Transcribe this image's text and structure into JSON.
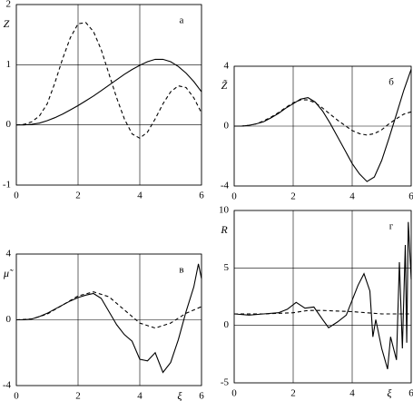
{
  "chart_data": [
    {
      "type": "line",
      "ylabel": "Z",
      "annotation": "а",
      "xlim": [
        0,
        6
      ],
      "ylim": [
        -1,
        2
      ],
      "xticks": [
        0,
        2,
        4,
        6
      ],
      "yticks": [
        -1,
        0,
        1,
        2
      ],
      "grid": true,
      "series": [
        {
          "color": "#000",
          "linestyle": "dashed",
          "x": [
            0,
            0.25,
            0.5,
            0.75,
            1,
            1.25,
            1.5,
            1.75,
            2,
            2.25,
            2.5,
            2.75,
            3,
            3.25,
            3.5,
            3.75,
            4,
            4.25,
            4.5,
            4.75,
            5,
            5.25,
            5.5,
            5.75,
            6
          ],
          "values": [
            0,
            0.01,
            0.05,
            0.15,
            0.35,
            0.7,
            1.1,
            1.45,
            1.68,
            1.7,
            1.55,
            1.25,
            0.85,
            0.45,
            0.1,
            -0.15,
            -0.22,
            -0.12,
            0.1,
            0.35,
            0.55,
            0.65,
            0.62,
            0.45,
            0.2
          ]
        },
        {
          "color": "#000",
          "linestyle": "solid",
          "x": [
            0,
            0.25,
            0.5,
            0.75,
            1,
            1.25,
            1.5,
            1.75,
            2,
            2.25,
            2.5,
            2.75,
            3,
            3.25,
            3.5,
            3.75,
            4,
            4.25,
            4.5,
            4.75,
            5,
            5.25,
            5.5,
            5.75,
            6
          ],
          "values": [
            0,
            0,
            0.01,
            0.03,
            0.07,
            0.12,
            0.18,
            0.25,
            0.32,
            0.4,
            0.48,
            0.57,
            0.66,
            0.75,
            0.84,
            0.92,
            0.99,
            1.05,
            1.09,
            1.09,
            1.05,
            0.97,
            0.86,
            0.72,
            0.55
          ]
        }
      ]
    },
    {
      "type": "line",
      "ylabel": "Z̃",
      "annotation": "б",
      "xlim": [
        0,
        6
      ],
      "ylim": [
        -4,
        4
      ],
      "xticks": [
        0,
        2,
        4,
        6
      ],
      "yticks": [
        -4,
        0,
        4
      ],
      "grid": true,
      "series": [
        {
          "color": "#000",
          "linestyle": "dashed",
          "x": [
            0,
            0.25,
            0.5,
            0.75,
            1,
            1.25,
            1.5,
            1.75,
            2,
            2.25,
            2.5,
            2.75,
            3,
            3.25,
            3.5,
            3.75,
            4,
            4.25,
            4.5,
            4.75,
            5,
            5.25,
            5.5,
            5.75,
            6
          ],
          "values": [
            0,
            0,
            0.05,
            0.15,
            0.35,
            0.6,
            0.9,
            1.25,
            1.55,
            1.75,
            1.75,
            1.55,
            1.2,
            0.8,
            0.4,
            0.05,
            -0.3,
            -0.5,
            -0.6,
            -0.5,
            -0.25,
            0.15,
            0.5,
            0.8,
            0.95
          ]
        },
        {
          "color": "#000",
          "linestyle": "solid",
          "x": [
            0,
            0.25,
            0.5,
            0.75,
            1,
            1.25,
            1.5,
            1.75,
            2,
            2.25,
            2.5,
            2.75,
            3,
            3.25,
            3.5,
            3.75,
            4,
            4.25,
            4.5,
            4.75,
            5,
            5.25,
            5.5,
            5.75,
            6
          ],
          "values": [
            0,
            0,
            0.05,
            0.15,
            0.3,
            0.55,
            0.85,
            1.2,
            1.5,
            1.8,
            1.9,
            1.6,
            1.0,
            0.2,
            -0.7,
            -1.6,
            -2.5,
            -3.2,
            -3.7,
            -3.4,
            -2.3,
            -0.8,
            0.8,
            2.4,
            3.8
          ]
        }
      ]
    },
    {
      "type": "line",
      "ylabel": "μ̃",
      "annotation": "в",
      "xlabel": "ξ",
      "xlim": [
        0,
        6
      ],
      "ylim": [
        -4,
        4
      ],
      "xticks": [
        0,
        2,
        4,
        6
      ],
      "yticks": [
        -4,
        0,
        4
      ],
      "grid": true,
      "series": [
        {
          "color": "#000",
          "linestyle": "dashed",
          "x": [
            0,
            0.5,
            1,
            1.5,
            2,
            2.5,
            3,
            3.5,
            4,
            4.5,
            5,
            5.5,
            6
          ],
          "values": [
            0,
            0.05,
            0.35,
            0.9,
            1.45,
            1.7,
            1.4,
            0.6,
            -0.2,
            -0.5,
            -0.2,
            0.4,
            0.8
          ]
        },
        {
          "color": "#000",
          "linestyle": "solid",
          "x": [
            0,
            0.25,
            0.5,
            0.75,
            1,
            1.25,
            1.5,
            1.75,
            2,
            2.25,
            2.5,
            2.75,
            3,
            3.25,
            3.5,
            3.75,
            4,
            4.25,
            4.5,
            4.75,
            5,
            5.25,
            5.5,
            5.75,
            5.9,
            6
          ],
          "values": [
            0,
            0,
            0.05,
            0.2,
            0.4,
            0.65,
            0.9,
            1.15,
            1.35,
            1.5,
            1.6,
            1.3,
            0.5,
            -0.3,
            -0.9,
            -1.3,
            -2.4,
            -2.5,
            -2.0,
            -3.2,
            -2.6,
            -1.2,
            0.5,
            2.0,
            3.4,
            2.5
          ]
        }
      ]
    },
    {
      "type": "line",
      "ylabel": "R",
      "annotation": "г",
      "xlabel": "ξ",
      "xlim": [
        0,
        6
      ],
      "ylim": [
        -5,
        10
      ],
      "xticks": [
        0,
        2,
        4,
        6
      ],
      "yticks": [
        -5,
        0,
        5,
        10
      ],
      "grid": true,
      "series": [
        {
          "color": "#000",
          "linestyle": "dashed",
          "x": [
            0,
            1,
            2,
            2.5,
            3,
            4,
            5,
            6
          ],
          "values": [
            1,
            1,
            1.1,
            1.3,
            1.3,
            1.2,
            1.0,
            1.0
          ]
        },
        {
          "color": "#000",
          "linestyle": "solid",
          "x": [
            0,
            0.5,
            1,
            1.5,
            1.8,
            2.1,
            2.4,
            2.7,
            3,
            3.2,
            3.5,
            3.8,
            4,
            4.2,
            4.4,
            4.6,
            4.7,
            4.8,
            5,
            5.2,
            5.3,
            5.5,
            5.6,
            5.7,
            5.8,
            5.85,
            5.9,
            6
          ],
          "values": [
            1,
            0.9,
            1,
            1.1,
            1.4,
            2.0,
            1.5,
            1.6,
            0.5,
            -0.2,
            0.3,
            0.9,
            2.2,
            3.5,
            4.5,
            3.0,
            -1.0,
            0.5,
            -2.0,
            -3.8,
            -1.0,
            -3.0,
            5.5,
            -2.0,
            7.0,
            -1.5,
            9.0,
            4.0
          ]
        }
      ]
    }
  ]
}
